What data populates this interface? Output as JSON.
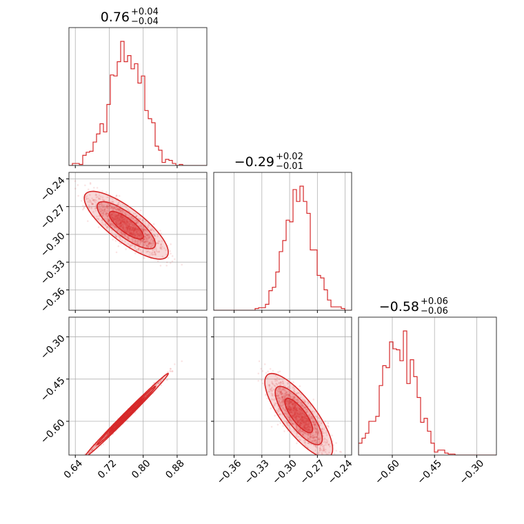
{
  "chart_data": {
    "type": "corner",
    "color": "#d62728",
    "parameters": [
      {
        "title_main": "0.76",
        "title_plus": "+0.04",
        "title_minus": "−0.04",
        "median": 0.76,
        "sigma": 0.04,
        "range": [
          0.625,
          0.95
        ],
        "ticks": [
          0.64,
          0.72,
          0.8,
          0.88
        ],
        "tick_labels": [
          "0.64",
          "0.72",
          "0.80",
          "0.88"
        ]
      },
      {
        "title_main": "−0.29",
        "title_plus": "+0.02",
        "title_minus": "−0.01",
        "median": -0.29,
        "sigma": 0.015,
        "range": [
          -0.382,
          -0.233
        ],
        "ticks": [
          -0.36,
          -0.33,
          -0.3,
          -0.27,
          -0.24
        ],
        "tick_labels": [
          "−0.36",
          "−0.33",
          "−0.30",
          "−0.27",
          "−0.24"
        ]
      },
      {
        "title_main": "−0.58",
        "title_plus": "+0.06",
        "title_minus": "−0.06",
        "median": -0.58,
        "sigma": 0.06,
        "range": [
          -0.72,
          -0.23
        ],
        "ticks": [
          -0.6,
          -0.45,
          -0.3
        ],
        "tick_labels": [
          "−0.60",
          "−0.45",
          "−0.30"
        ]
      }
    ],
    "grid": true
  }
}
